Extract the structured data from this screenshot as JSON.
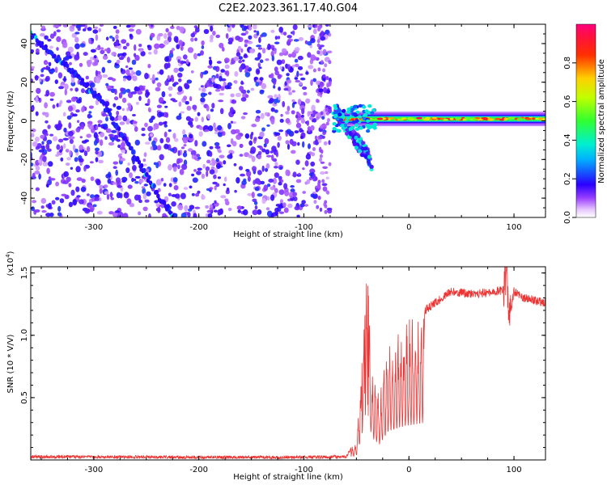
{
  "title": "C2E2.2023.361.17.40.G04",
  "chart_data": [
    {
      "type": "heatmap",
      "xlabel": "Height of straight line (km)",
      "ylabel": "Frequency (Hz)",
      "xlim": [
        -360,
        130
      ],
      "ylim": [
        -50,
        50
      ],
      "x_ticks": [
        -300,
        -200,
        -100,
        0,
        100
      ],
      "y_ticks": [
        -40,
        -20,
        0,
        20,
        40
      ],
      "noise_region_x": [
        -360,
        -75
      ],
      "diagonal_trace": [
        [
          -360,
          45
        ],
        [
          -320,
          25
        ],
        [
          -295,
          12
        ],
        [
          -250,
          -28
        ],
        [
          -235,
          -42
        ],
        [
          -222,
          -50
        ]
      ],
      "tone_line": {
        "x_start": -70,
        "x_end": 130,
        "frequency": 1
      },
      "spread_branch": [
        [
          -70,
          6
        ],
        [
          -55,
          -6
        ],
        [
          -45,
          -14
        ],
        [
          -35,
          -22
        ]
      ],
      "colorbar": {
        "label": "Normalized spectral amplitude",
        "range": [
          0,
          1
        ],
        "ticks": [
          0.0,
          0.2,
          0.4,
          0.6,
          0.8
        ]
      }
    },
    {
      "type": "line",
      "xlabel": "Height of straight line (km)",
      "ylabel": "SNR (10 * V/V)",
      "scale_note": "(x10",
      "scale_exp": "4",
      "scale_close": ")",
      "xlim": [
        -360,
        130
      ],
      "ylim": [
        0,
        15500
      ],
      "x_ticks": [
        -300,
        -200,
        -100,
        0,
        100
      ],
      "y_ticks": [
        5000,
        10000,
        15000
      ],
      "y_tick_labels": [
        "0.5",
        "1.0",
        "1.5"
      ],
      "color": "#ee3333",
      "envelope": [
        [
          -360,
          250
        ],
        [
          -120,
          200
        ],
        [
          -60,
          250
        ],
        [
          -50,
          1500
        ],
        [
          -45,
          7500
        ],
        [
          -42,
          12500
        ],
        [
          -40,
          14500
        ],
        [
          -35,
          7000
        ],
        [
          -28,
          5000
        ],
        [
          -20,
          9000
        ],
        [
          -10,
          10000
        ],
        [
          0,
          11000
        ],
        [
          20,
          12300
        ],
        [
          40,
          13500
        ],
        [
          60,
          13300
        ],
        [
          80,
          13500
        ],
        [
          90,
          13600
        ],
        [
          93,
          15200
        ],
        [
          95,
          11000
        ],
        [
          100,
          13500
        ],
        [
          110,
          13000
        ],
        [
          130,
          12600
        ]
      ]
    }
  ]
}
